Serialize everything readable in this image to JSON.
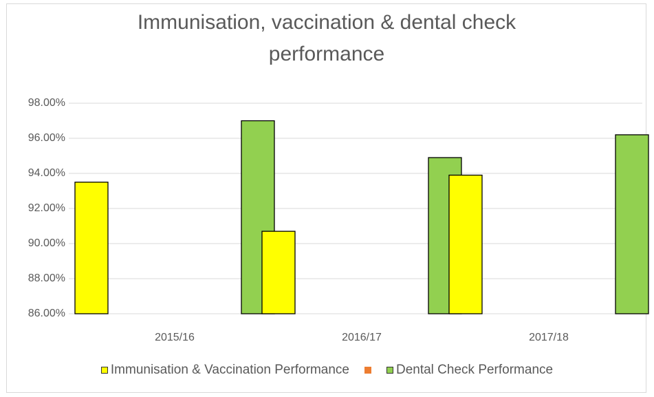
{
  "chart_data": {
    "type": "bar",
    "title": "Immunisation, vaccination & dental check performance",
    "categories": [
      "2015/16",
      "2016/17",
      "2017/18"
    ],
    "series": [
      {
        "name": "Immunisation & Vaccination Performance",
        "color": "#ffff00",
        "values": [
          93.5,
          90.7,
          93.9
        ]
      },
      {
        "color": "#ed7d31",
        "values": [
          null,
          null,
          null
        ]
      },
      {
        "name": "Dental Check Performance",
        "color": "#92d050",
        "values": [
          97.0,
          94.9,
          96.2
        ]
      }
    ],
    "ylim": [
      86,
      98
    ],
    "yticks": [
      {
        "value": 86,
        "label": "86.00%"
      },
      {
        "value": 88,
        "label": "88.00%"
      },
      {
        "value": 90,
        "label": "90.00%"
      },
      {
        "value": 92,
        "label": "92.00%"
      },
      {
        "value": 94,
        "label": "94.00%"
      },
      {
        "value": 96,
        "label": "96.00%"
      },
      {
        "value": 98,
        "label": "98.00%"
      }
    ],
    "grid": true,
    "legend": "bottom"
  }
}
